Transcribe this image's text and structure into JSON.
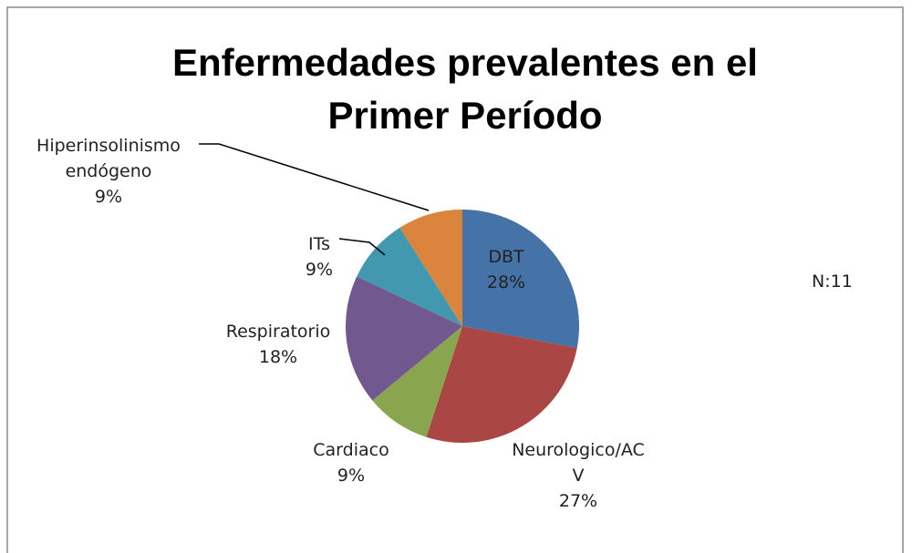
{
  "chart_data": {
    "type": "pie",
    "title": "Enfermedades prevalentes en el Primer Período",
    "categories": [
      "DBT",
      "Neurologico/ACV",
      "Cardiaco",
      "Respiratorio",
      "ITs",
      "Hiperinsolinismo endógeno"
    ],
    "values": [
      28,
      27,
      9,
      18,
      9,
      9
    ],
    "value_labels": [
      "28%",
      "27%",
      "9%",
      "18%",
      "9%",
      "9%"
    ],
    "colors": [
      "#4572a7",
      "#aa4643",
      "#89a54e",
      "#71588f",
      "#4198af",
      "#db843d"
    ],
    "annotations": [
      "N:11"
    ]
  }
}
